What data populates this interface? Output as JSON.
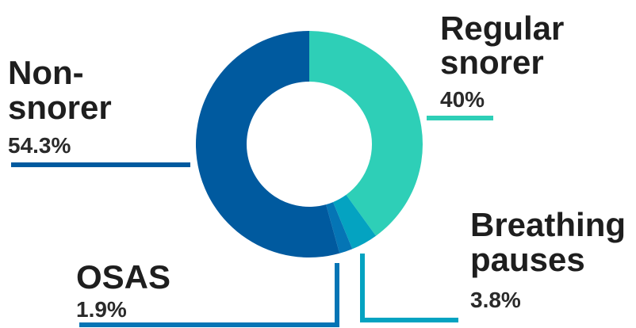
{
  "chart_data": {
    "type": "pie",
    "variant": "donut",
    "slices": [
      {
        "label_lines": [
          "Regular",
          "snorer"
        ],
        "value": 40,
        "value_label": "40%",
        "color": "#2ecfb7"
      },
      {
        "label_lines": [
          "Breathing",
          "pauses"
        ],
        "value": 3.8,
        "value_label": "3.8%",
        "color": "#04a3c1"
      },
      {
        "label_lines": [
          "OSAS"
        ],
        "value": 1.9,
        "value_label": "1.9%",
        "color": "#0575b5"
      },
      {
        "label_lines": [
          "Non-",
          "snorer"
        ],
        "value": 54.3,
        "value_label": "54.3%",
        "color": "#005a9f"
      }
    ],
    "start_angle_deg": 0,
    "direction": "clockwise",
    "legend": "none"
  }
}
